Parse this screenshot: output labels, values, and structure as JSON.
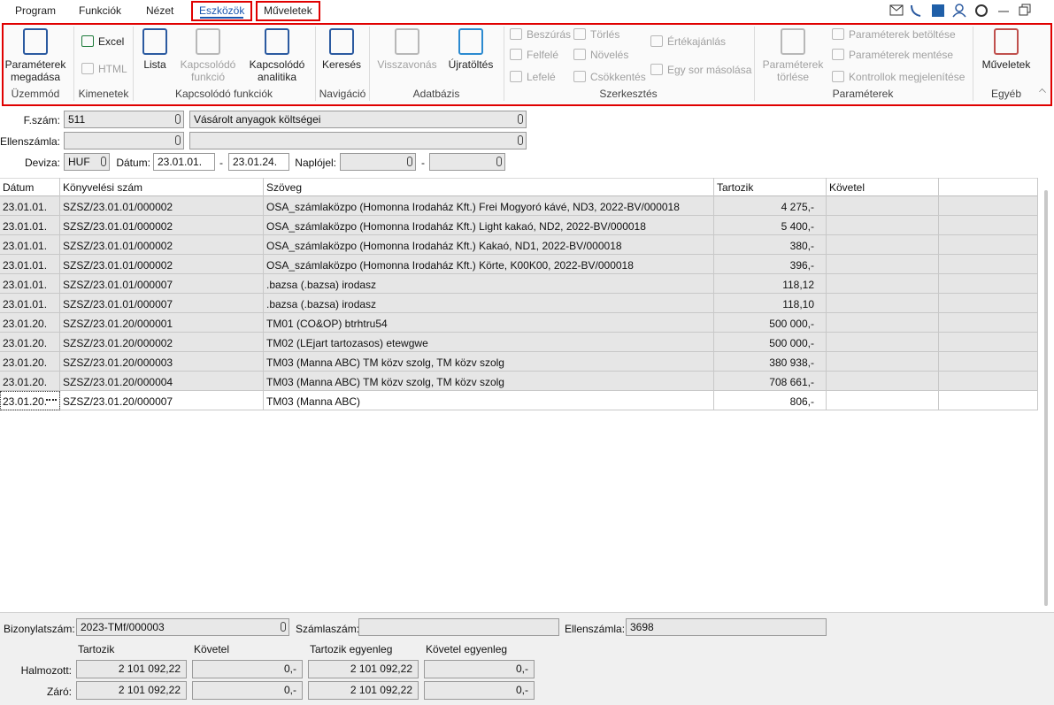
{
  "menu": [
    "Program",
    "Funkciók",
    "Nézet",
    "Eszközök",
    "Műveletek"
  ],
  "menu_active": 3,
  "menu_highlighted": [
    3,
    4
  ],
  "ribbon": {
    "groups": [
      {
        "label": "Üzemmód",
        "buttons": [
          {
            "label": "Paraméterek megadása"
          }
        ]
      },
      {
        "label": "Kimenetek",
        "buttons": [
          {
            "label": "Excel"
          },
          {
            "label": "HTML",
            "disabled": true
          }
        ]
      },
      {
        "label": "Kapcsolódó funkciók",
        "buttons": [
          {
            "label": "Lista"
          },
          {
            "label": "Kapcsolódó funkció",
            "disabled": true
          },
          {
            "label": "Kapcsolódó analitika"
          }
        ]
      },
      {
        "label": "Navigáció",
        "buttons": [
          {
            "label": "Keresés"
          }
        ]
      },
      {
        "label": "Adatbázis",
        "buttons": [
          {
            "label": "Visszavonás",
            "disabled": true
          },
          {
            "label": "Újratöltés"
          }
        ]
      },
      {
        "label": "Szerkesztés",
        "buttons": [
          {
            "label": "Beszúrás",
            "disabled": true
          },
          {
            "label": "Felfelé",
            "disabled": true
          },
          {
            "label": "Lefelé",
            "disabled": true
          },
          {
            "label": "Törlés",
            "disabled": true
          },
          {
            "label": "Növelés",
            "disabled": true
          },
          {
            "label": "Csökkentés",
            "disabled": true
          },
          {
            "label": "Értékajánlás",
            "disabled": true
          },
          {
            "label": "Egy sor másolása",
            "disabled": true
          }
        ]
      },
      {
        "label": "Paraméterek",
        "buttons": [
          {
            "label": "Paraméterek törlése",
            "disabled": true
          },
          {
            "label": "Paraméterek betöltése",
            "disabled": true
          },
          {
            "label": "Paraméterek mentése",
            "disabled": true
          },
          {
            "label": "Kontrollok megjelenítése",
            "disabled": true
          }
        ]
      },
      {
        "label": "Egyéb",
        "buttons": [
          {
            "label": "Műveletek"
          }
        ]
      }
    ]
  },
  "form": {
    "fszam_label": "F.szám:",
    "fszam": "511",
    "fszam_name": "Vásárolt anyagok költségei",
    "ellenszamla_label": "Ellenszámla:",
    "deviza_label": "Deviza:",
    "deviza": "HUF",
    "datum_label": "Dátum:",
    "datum_from": "23.01.01.",
    "datum_to": "23.01.24.",
    "dash": "-",
    "naplojel_label": "Naplójel:"
  },
  "table": {
    "columns": [
      "Dátum",
      "Könyvelési szám",
      "Szöveg",
      "Tartozik",
      "Követel"
    ],
    "rows": [
      [
        "23.01.01.",
        "SZSZ/23.01.01/000002",
        "OSA_számlaközpo (Homonna Irodaház Kft.) Frei Mogyoró kávé, ND3, 2022-BV/000018",
        "4 275,-"
      ],
      [
        "23.01.01.",
        "SZSZ/23.01.01/000002",
        "OSA_számlaközpo (Homonna Irodaház Kft.) Light kakaó, ND2, 2022-BV/000018",
        "5 400,-"
      ],
      [
        "23.01.01.",
        "SZSZ/23.01.01/000002",
        "OSA_számlaközpo (Homonna Irodaház Kft.) Kakaó, ND1, 2022-BV/000018",
        "380,-"
      ],
      [
        "23.01.01.",
        "SZSZ/23.01.01/000002",
        "OSA_számlaközpo (Homonna Irodaház Kft.) Körte, K00K00, 2022-BV/000018",
        "396,-"
      ],
      [
        "23.01.01.",
        "SZSZ/23.01.01/000007",
        ".bazsa (.bazsa) irodasz",
        "118,12"
      ],
      [
        "23.01.01.",
        "SZSZ/23.01.01/000007",
        ".bazsa (.bazsa) irodasz",
        "118,10"
      ],
      [
        "23.01.20.",
        "SZSZ/23.01.20/000001",
        "TM01 (CO&OP) btrhtru54",
        "500 000,-"
      ],
      [
        "23.01.20.",
        "SZSZ/23.01.20/000002",
        "TM02 (LEjart tartozasos) etewgwe",
        "500 000,-"
      ],
      [
        "23.01.20.",
        "SZSZ/23.01.20/000003",
        "TM03 (Manna ABC) TM közv szolg, TM közv szolg",
        "380 938,-"
      ],
      [
        "23.01.20.",
        "SZSZ/23.01.20/000004",
        "TM03 (Manna ABC) TM közv szolg, TM közv szolg",
        "708 661,-"
      ],
      [
        "23.01.20.",
        "SZSZ/23.01.20/000007",
        "TM03 (Manna ABC)",
        "806,-"
      ]
    ],
    "selected_row": 10
  },
  "footer": {
    "bizonylatszam_label": "Bizonylatszám:",
    "bizonylatszam": "2023-TMf/000003",
    "szamlaszam_label": "Számlaszám:",
    "ellenszamla_label": "Ellenszámla:",
    "ellenszamla": "3698",
    "sum_columns": [
      "Tartozik",
      "Követel",
      "Tartozik egyenleg",
      "Követel egyenleg"
    ],
    "sum_rows": [
      {
        "label": "Halmozott:",
        "values": [
          "2 101 092,22",
          "0,-",
          "2 101 092,22",
          "0,-"
        ]
      },
      {
        "label": "Záró:",
        "values": [
          "2 101 092,22",
          "0,-",
          "2 101 092,22",
          "0,-"
        ]
      }
    ]
  }
}
